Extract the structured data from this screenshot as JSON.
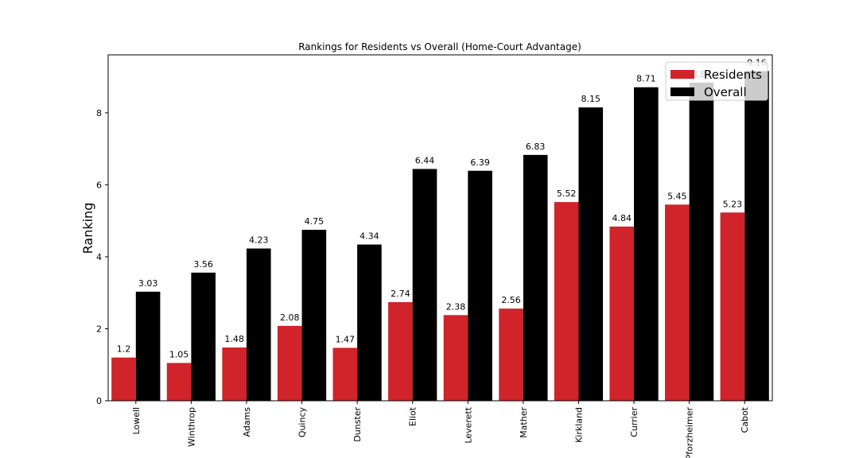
{
  "chart_data": {
    "type": "bar",
    "title": "Rankings for Residents vs Overall (Home-Court Advantage)",
    "y_label": "Ranking",
    "categories": [
      "Lowell",
      "Winthrop",
      "Adams",
      "Quincy",
      "Dunster",
      "Eliot",
      "Leverett",
      "Mather",
      "Kirkland",
      "Currier",
      "Pforzheimer",
      "Cabot"
    ],
    "series": [
      {
        "name": "Residents",
        "color": "#d0232a",
        "values": [
          1.2,
          1.05,
          1.48,
          2.08,
          1.47,
          2.74,
          2.38,
          2.56,
          5.52,
          4.84,
          5.45,
          5.23
        ]
      },
      {
        "name": "Overall",
        "color": "#000000",
        "values": [
          3.03,
          3.56,
          4.23,
          4.75,
          4.34,
          6.44,
          6.39,
          6.83,
          8.15,
          8.71,
          8.84,
          9.16
        ]
      }
    ],
    "ylim": [
      0,
      9.61
    ],
    "yticks": [
      0,
      2,
      4,
      6,
      8
    ],
    "legend": "upper right"
  }
}
